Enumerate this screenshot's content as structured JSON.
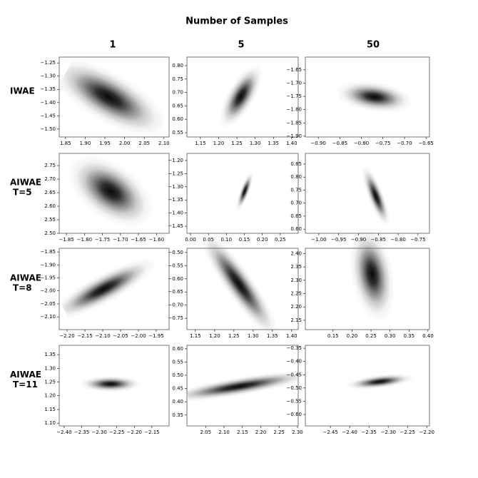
{
  "title": "Number of Samples",
  "column_labels": [
    "1",
    "5",
    "50"
  ],
  "row_labels": [
    [
      "IWAE"
    ],
    [
      "AIWAE",
      "T=5"
    ],
    [
      "AIWAE",
      "T=8"
    ],
    [
      "AIWAE",
      "T=11"
    ]
  ],
  "chart_data": [
    {
      "type": "density",
      "mean_x": 1.96,
      "mean_y": -1.38,
      "std_x": 0.05,
      "std_y": 0.05,
      "corr": -0.7,
      "xlim": [
        1.834,
        2.113
      ],
      "ylim": [
        -1.53,
        -1.228
      ],
      "xticks": [
        1.85,
        {
          "value": 1.9,
          "label": "1.90"
        },
        1.95,
        {
          "value": 2,
          "label": "2.00"
        },
        2.05,
        {
          "value": 2.1,
          "label": "2.10"
        }
      ],
      "yticks": [
        {
          "value": -1.25,
          "label": "−1.25"
        },
        {
          "value": -1.3,
          "label": "−1.30"
        },
        {
          "value": -1.35,
          "label": "−1.35"
        },
        {
          "value": -1.4,
          "label": "−1.40"
        },
        {
          "value": -1.45,
          "label": "−1.45"
        },
        {
          "value": -1.5,
          "label": "−1.50"
        }
      ]
    },
    {
      "type": "density",
      "mean_x": 1.261,
      "mean_y": 0.686,
      "std_x": 0.02,
      "std_y": 0.04,
      "corr": 0.7,
      "xlim": [
        1.113,
        1.418
      ],
      "ylim": [
        0.534,
        0.832
      ],
      "xticks": [
        1.15,
        {
          "value": 1.2,
          "label": "1.20"
        },
        1.25,
        {
          "value": 1.3,
          "label": "1.30"
        },
        1.35,
        {
          "value": 1.4,
          "label": "1.40"
        }
      ],
      "yticks": [
        0.55,
        {
          "value": 0.6,
          "label": "0.60"
        },
        0.65,
        {
          "value": 0.7,
          "label": "0.70"
        },
        0.75,
        {
          "value": 0.8,
          "label": "0.80"
        }
      ]
    },
    {
      "type": "density",
      "mean_x": -0.77,
      "mean_y": -1.752,
      "std_x": 0.03,
      "std_y": 0.02,
      "corr": -0.3,
      "xlim": [
        -0.93,
        -0.642
      ],
      "ylim": [
        -1.903,
        -1.602
      ],
      "xticks": [
        {
          "value": -0.9,
          "label": "−0.90"
        },
        {
          "value": -0.85,
          "label": "−0.85"
        },
        {
          "value": -0.8,
          "label": "−0.80"
        },
        {
          "value": -0.75,
          "label": "−0.75"
        },
        {
          "value": -0.7,
          "label": "−0.70"
        },
        {
          "value": -0.65,
          "label": "−0.65"
        }
      ],
      "yticks": [
        {
          "value": -1.65,
          "label": "−1.65"
        },
        {
          "value": -1.7,
          "label": "−1.70"
        },
        {
          "value": -1.75,
          "label": "−1.75"
        },
        {
          "value": -1.8,
          "label": "−1.80"
        },
        {
          "value": -1.85,
          "label": "−1.85"
        },
        {
          "value": -1.9,
          "label": "−1.90"
        }
      ]
    },
    {
      "type": "density",
      "mean_x": -1.727,
      "mean_y": 2.655,
      "std_x": 0.04,
      "std_y": 0.045,
      "corr": -0.5,
      "xlim": [
        -1.87,
        -1.565
      ],
      "ylim": [
        2.5,
        2.795
      ],
      "xticks": [
        {
          "value": -1.85,
          "label": "−1.85"
        },
        {
          "value": -1.8,
          "label": "−1.80"
        },
        {
          "value": -1.75,
          "label": "−1.75"
        },
        {
          "value": -1.7,
          "label": "−1.70"
        },
        {
          "value": -1.65,
          "label": "−1.65"
        },
        {
          "value": -1.6,
          "label": "−1.60"
        }
      ],
      "yticks": [
        {
          "value": 2.5,
          "label": "2.50"
        },
        2.55,
        {
          "value": 2.6,
          "label": "2.60"
        },
        2.65,
        {
          "value": 2.7,
          "label": "2.70"
        },
        2.75
      ]
    },
    {
      "type": "density",
      "mean_x": 0.151,
      "mean_y": -1.317,
      "std_x": 0.008,
      "std_y": 0.025,
      "corr": 0.8,
      "xlim": [
        -0.01,
        0.3
      ],
      "ylim": [
        -1.477,
        -1.173
      ],
      "xticks": [
        {
          "value": 0,
          "label": "0.00"
        },
        0.05,
        {
          "value": 0.1,
          "label": "0.10"
        },
        0.15,
        {
          "value": 0.2,
          "label": "0.20"
        },
        0.25
      ],
      "yticks": [
        {
          "value": -1.2,
          "label": "−1.20"
        },
        {
          "value": -1.25,
          "label": "−1.25"
        },
        {
          "value": -1.3,
          "label": "−1.30"
        },
        {
          "value": -1.35,
          "label": "−1.35"
        },
        {
          "value": -1.4,
          "label": "−1.40"
        },
        {
          "value": -1.45,
          "label": "−1.45"
        }
      ]
    },
    {
      "type": "density",
      "mean_x": -0.856,
      "mean_y": 0.726,
      "std_x": 0.012,
      "std_y": 0.04,
      "corr": -0.8,
      "xlim": [
        -1.034,
        -0.721
      ],
      "ylim": [
        0.584,
        0.891
      ],
      "xticks": [
        {
          "value": -1,
          "label": "−1.00"
        },
        {
          "value": -0.95,
          "label": "−0.95"
        },
        {
          "value": -0.9,
          "label": "−0.90"
        },
        {
          "value": -0.85,
          "label": "−0.85"
        },
        {
          "value": -0.8,
          "label": "−0.80"
        },
        {
          "value": -0.75,
          "label": "−0.75"
        }
      ],
      "yticks": [
        {
          "value": 0.6,
          "label": "0.60"
        },
        0.65,
        {
          "value": 0.7,
          "label": "0.70"
        },
        0.75,
        {
          "value": 0.8,
          "label": "0.80"
        },
        0.85
      ]
    },
    {
      "type": "density",
      "mean_x": -2.098,
      "mean_y": -1.993,
      "std_x": 0.05,
      "std_y": 0.04,
      "corr": 0.85,
      "xlim": [
        -2.222,
        -1.914
      ],
      "ylim": [
        -2.149,
        -1.836
      ],
      "xticks": [
        {
          "value": -2.2,
          "label": "−2.20"
        },
        {
          "value": -2.15,
          "label": "−2.15"
        },
        {
          "value": -2.1,
          "label": "−2.10"
        },
        {
          "value": -2.05,
          "label": "−2.05"
        },
        {
          "value": -2,
          "label": "−2.00"
        },
        {
          "value": -1.95,
          "label": "−1.95"
        }
      ],
      "yticks": [
        {
          "value": -1.85,
          "label": "−1.85"
        },
        {
          "value": -1.9,
          "label": "−1.90"
        },
        {
          "value": -1.95,
          "label": "−1.95"
        },
        {
          "value": -2,
          "label": "−2.00"
        },
        {
          "value": -2.05,
          "label": "−2.05"
        },
        {
          "value": -2.1,
          "label": "−2.10"
        }
      ]
    },
    {
      "type": "density",
      "mean_x": 1.263,
      "mean_y": -0.62,
      "std_x": 0.035,
      "std_y": 0.07,
      "corr": -0.9,
      "xlim": [
        1.128,
        1.417
      ],
      "ylim": [
        -0.793,
        -0.484
      ],
      "xticks": [
        1.15,
        {
          "value": 1.2,
          "label": "1.20"
        },
        1.25,
        {
          "value": 1.3,
          "label": "1.30"
        },
        1.35,
        {
          "value": 1.4,
          "label": "1.40"
        }
      ],
      "yticks": [
        {
          "value": -0.5,
          "label": "−0.50"
        },
        {
          "value": -0.55,
          "label": "−0.55"
        },
        {
          "value": -0.6,
          "label": "−0.60"
        },
        {
          "value": -0.65,
          "label": "−0.65"
        },
        {
          "value": -0.7,
          "label": "−0.70"
        },
        {
          "value": -0.75,
          "label": "−0.75"
        }
      ]
    },
    {
      "type": "density",
      "mean_x": 0.253,
      "mean_y": 2.322,
      "std_x": 0.02,
      "std_y": 0.06,
      "corr": -0.3,
      "xlim": [
        0.077,
        0.404
      ],
      "ylim": [
        2.115,
        2.42
      ],
      "xticks": [
        0.15,
        {
          "value": 0.2,
          "label": "0.20"
        },
        0.25,
        {
          "value": 0.3,
          "label": "0.30"
        },
        0.35,
        {
          "value": 0.4,
          "label": "0.40"
        }
      ],
      "yticks": [
        2.15,
        {
          "value": 2.2,
          "label": "2.20"
        },
        2.25,
        {
          "value": 2.3,
          "label": "2.30"
        },
        2.35,
        {
          "value": 2.4,
          "label": "2.40"
        }
      ]
    },
    {
      "type": "density",
      "mean_x": -2.268,
      "mean_y": 1.243,
      "std_x": 0.03,
      "std_y": 0.01,
      "corr": 0,
      "xlim": [
        -2.414,
        -2.101
      ],
      "ylim": [
        1.09,
        1.384
      ],
      "xticks": [
        {
          "value": -2.4,
          "label": "−2.40"
        },
        {
          "value": -2.35,
          "label": "−2.35"
        },
        {
          "value": -2.3,
          "label": "−2.30"
        },
        {
          "value": -2.25,
          "label": "−2.25"
        },
        {
          "value": -2.2,
          "label": "−2.20"
        },
        {
          "value": -2.15,
          "label": "−2.15"
        }
      ],
      "yticks": [
        {
          "value": 1.1,
          "label": "1.10"
        },
        1.15,
        {
          "value": 1.2,
          "label": "1.20"
        },
        1.25,
        {
          "value": 1.3,
          "label": "1.30"
        },
        1.35
      ]
    },
    {
      "type": "density",
      "mean_x": 2.141,
      "mean_y": 0.458,
      "std_x": 0.07,
      "std_y": 0.02,
      "corr": 0.8,
      "xlim": [
        1.999,
        2.302
      ],
      "ylim": [
        0.309,
        0.613
      ],
      "xticks": [
        2.05,
        {
          "value": 2.1,
          "label": "2.10"
        },
        2.15,
        {
          "value": 2.2,
          "label": "2.20"
        },
        2.25,
        {
          "value": 2.3,
          "label": "2.30"
        }
      ],
      "yticks": [
        0.35,
        {
          "value": 0.4,
          "label": "0.40"
        },
        0.45,
        {
          "value": 0.5,
          "label": "0.50"
        },
        0.55,
        {
          "value": 0.6,
          "label": "0.60"
        }
      ]
    },
    {
      "type": "density",
      "mean_x": -2.322,
      "mean_y": -0.476,
      "std_x": 0.03,
      "std_y": 0.01,
      "corr": 0.5,
      "xlim": [
        -2.515,
        -2.193
      ],
      "ylim": [
        -0.643,
        -0.339
      ],
      "xticks": [
        {
          "value": -2.45,
          "label": "−2.45"
        },
        {
          "value": -2.4,
          "label": "−2.40"
        },
        {
          "value": -2.35,
          "label": "−2.35"
        },
        {
          "value": -2.3,
          "label": "−2.30"
        },
        {
          "value": -2.25,
          "label": "−2.25"
        },
        {
          "value": -2.2,
          "label": "−2.20"
        }
      ],
      "yticks": [
        {
          "value": -0.35,
          "label": "−0.35"
        },
        {
          "value": -0.4,
          "label": "−0.40"
        },
        {
          "value": -0.45,
          "label": "−0.45"
        },
        {
          "value": -0.5,
          "label": "−0.50"
        },
        {
          "value": -0.55,
          "label": "−0.55"
        },
        {
          "value": -0.6,
          "label": "−0.60"
        }
      ]
    }
  ]
}
